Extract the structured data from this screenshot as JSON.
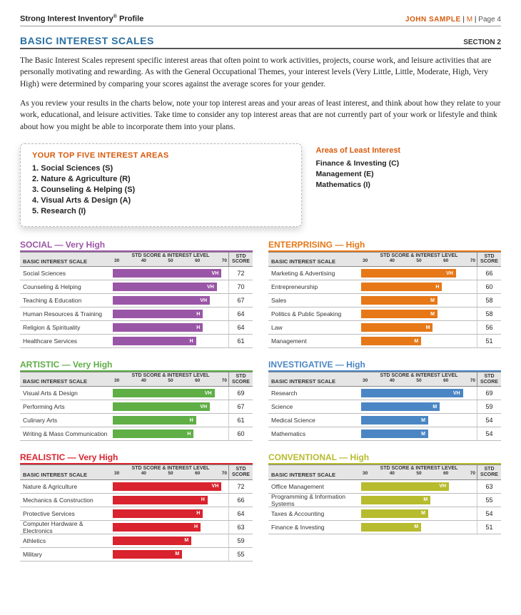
{
  "header": {
    "doc_title_a": "Strong Interest Inventory",
    "doc_title_b": " Profile",
    "user_name": "JOHN SAMPLE",
    "gender": "M",
    "page_label": "Page 4"
  },
  "section": {
    "title": "BASIC INTEREST SCALES",
    "num": "SECTION 2"
  },
  "intro": {
    "p1": "The Basic Interest Scales represent specific interest areas that often point to work activities, projects, course work, and leisure activities that are personally motivating and rewarding. As with the General Occupational Themes, your interest levels (Very Little, Little, Moderate, High, Very High) were determined by comparing your scores against the average scores for your gender.",
    "p2": "As you review your results in the charts below, note your top interest areas and your areas of least interest, and think about how they relate to your work, educational, and leisure activities. Take time to consider any top interest areas that are not currently part of your work or lifestyle and think about how you might be able to incorporate them into your plans."
  },
  "top5": {
    "title": "YOUR TOP FIVE INTEREST AREAS",
    "items": [
      "1. Social Sciences (S)",
      "2. Nature & Agriculture (R)",
      "3. Counseling & Helping (S)",
      "4. Visual Arts & Design (A)",
      "5. Research (I)"
    ]
  },
  "least": {
    "title": "Areas of Least Interest",
    "items": [
      "Finance & Investing (C)",
      "Management (E)",
      "Mathematics (I)"
    ]
  },
  "chart_common": {
    "col_name_label": "BASIC INTEREST SCALE",
    "col_bar_label": "STD SCORE & INTEREST LEVEL",
    "col_score_label": "STD SCORE",
    "ticks": [
      "30",
      "40",
      "50",
      "60",
      "70"
    ],
    "scale_min": 25,
    "scale_max": 75
  },
  "themes": [
    {
      "name": "SOCIAL — Very High",
      "color": "#9a56a6",
      "rows": [
        {
          "label": "Social Sciences",
          "level": "VH",
          "score": 72
        },
        {
          "label": "Counseling & Helping",
          "level": "VH",
          "score": 70
        },
        {
          "label": "Teaching & Education",
          "level": "VH",
          "score": 67
        },
        {
          "label": "Human Resources & Training",
          "level": "H",
          "score": 64
        },
        {
          "label": "Religion & Spirituality",
          "level": "H",
          "score": 64
        },
        {
          "label": "Healthcare Services",
          "level": "H",
          "score": 61
        }
      ]
    },
    {
      "name": "ENTERPRISING — High",
      "color": "#e67817",
      "rows": [
        {
          "label": "Marketing & Advertising",
          "level": "VH",
          "score": 66
        },
        {
          "label": "Entrepreneurship",
          "level": "H",
          "score": 60
        },
        {
          "label": "Sales",
          "level": "M",
          "score": 58
        },
        {
          "label": "Politics & Public Speaking",
          "level": "M",
          "score": 58
        },
        {
          "label": "Law",
          "level": "M",
          "score": 56
        },
        {
          "label": "Management",
          "level": "M",
          "score": 51
        }
      ]
    },
    {
      "name": "ARTISTIC — Very High",
      "color": "#5fae46",
      "rows": [
        {
          "label": "Visual Arts & Design",
          "level": "VH",
          "score": 69
        },
        {
          "label": "Performing Arts",
          "level": "VH",
          "score": 67
        },
        {
          "label": "Culinary Arts",
          "level": "H",
          "score": 61
        },
        {
          "label": "Writing & Mass Communication",
          "level": "H",
          "score": 60
        }
      ]
    },
    {
      "name": "INVESTIGATIVE — High",
      "color": "#4b86c4",
      "rows": [
        {
          "label": "Research",
          "level": "VH",
          "score": 69
        },
        {
          "label": "Science",
          "level": "M",
          "score": 59
        },
        {
          "label": "Medical Science",
          "level": "M",
          "score": 54
        },
        {
          "label": "Mathematics",
          "level": "M",
          "score": 54
        }
      ]
    },
    {
      "name": "REALISTIC — Very High",
      "color": "#d9232e",
      "rows": [
        {
          "label": "Nature & Agriculture",
          "level": "VH",
          "score": 72
        },
        {
          "label": "Mechanics & Construction",
          "level": "H",
          "score": 66
        },
        {
          "label": "Protective Services",
          "level": "H",
          "score": 64
        },
        {
          "label": "Computer Hardware & Electronics",
          "level": "H",
          "score": 63
        },
        {
          "label": "Athletics",
          "level": "M",
          "score": 59
        },
        {
          "label": "Military",
          "level": "M",
          "score": 55
        }
      ]
    },
    {
      "name": "CONVENTIONAL — High",
      "color": "#b7bb2e",
      "rows": [
        {
          "label": "Office Management",
          "level": "VH",
          "score": 63
        },
        {
          "label": "Programming & Information Systems",
          "level": "M",
          "score": 55
        },
        {
          "label": "Taxes & Accounting",
          "level": "M",
          "score": 54
        },
        {
          "label": "Finance & Investing",
          "level": "M",
          "score": 51
        }
      ]
    }
  ]
}
